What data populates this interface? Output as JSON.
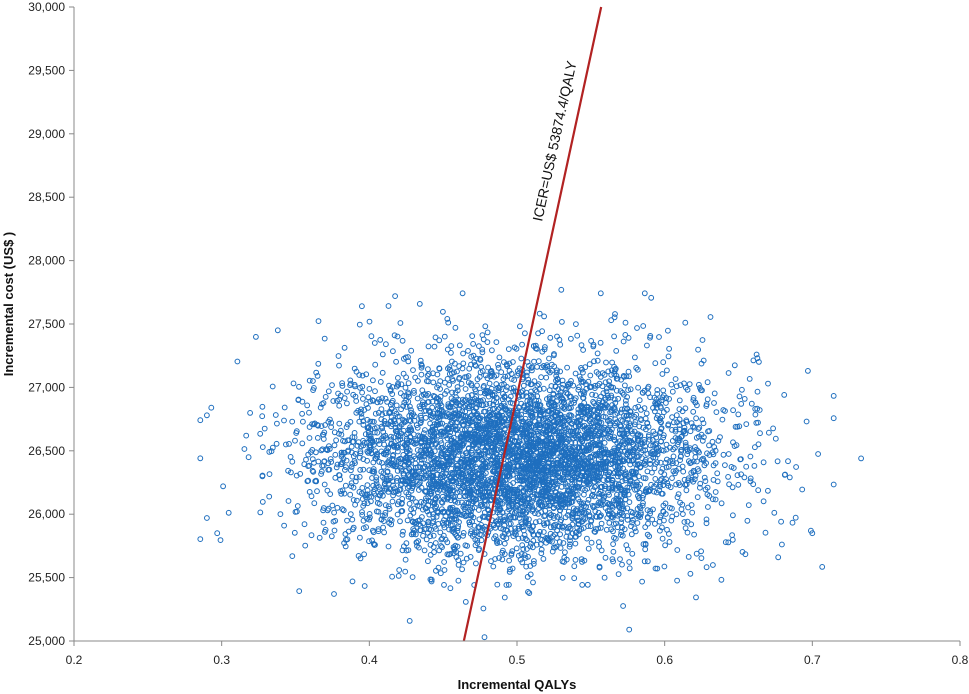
{
  "chart_data": {
    "type": "scatter",
    "title": "",
    "xlabel": "Incremental QALYs",
    "ylabel": "Incremental cost (US$ )",
    "xlim": [
      0.2,
      0.8
    ],
    "ylim": [
      25000,
      30000
    ],
    "x_ticks": [
      "0.2",
      "0.3",
      "0.4",
      "0.5",
      "0.6",
      "0.7",
      "0.8"
    ],
    "y_ticks": [
      "25,000",
      "25,500",
      "26,000",
      "26,500",
      "27,000",
      "27,500",
      "28,000",
      "28,500",
      "29,000",
      "29,500",
      "30,000"
    ],
    "grid": false,
    "legend": "none",
    "scatter_summary": {
      "approx_points": 5000,
      "x_mean": 0.5,
      "x_sd": 0.065,
      "y_mean": 26450,
      "y_sd": 380,
      "marker": "open-circle",
      "color": "#1f6fbf"
    },
    "outliers": [
      {
        "x": 0.733,
        "y": 26440
      },
      {
        "x": 0.699,
        "y": 25870
      },
      {
        "x": 0.7,
        "y": 25850
      },
      {
        "x": 0.697,
        "y": 27130
      },
      {
        "x": 0.293,
        "y": 26840
      },
      {
        "x": 0.29,
        "y": 26780
      },
      {
        "x": 0.29,
        "y": 25970
      },
      {
        "x": 0.297,
        "y": 25850
      },
      {
        "x": 0.301,
        "y": 26220
      },
      {
        "x": 0.338,
        "y": 27450
      },
      {
        "x": 0.395,
        "y": 27640
      },
      {
        "x": 0.478,
        "y": 25030
      },
      {
        "x": 0.53,
        "y": 27770
      },
      {
        "x": 0.576,
        "y": 25090
      },
      {
        "x": 0.614,
        "y": 27510
      }
    ],
    "icer_line": {
      "label": "ICER=US$ 53874.4/QALY",
      "points": [
        [
          0.464,
          25000
        ],
        [
          0.557,
          30000
        ]
      ],
      "color": "#b22222"
    }
  }
}
